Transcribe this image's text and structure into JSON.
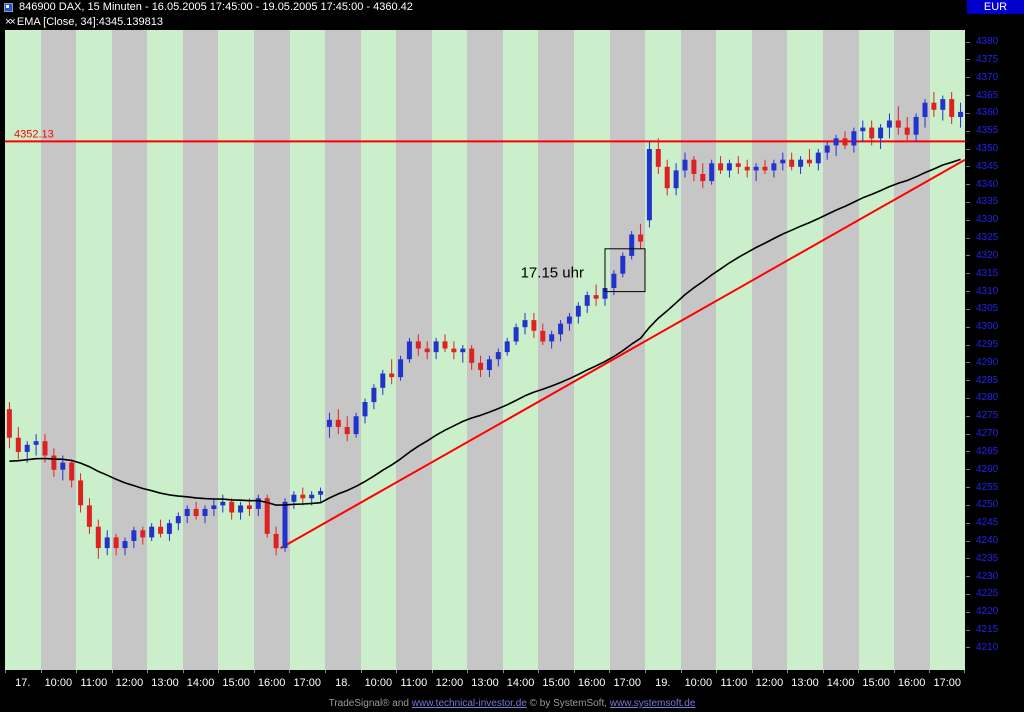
{
  "title_bar": {
    "title": "846900  DAX, 15 Minuten - 16.05.2005 17:45:00 - 19.05.2005 17:45:00 - 4360.42",
    "currency": "EUR"
  },
  "legend": {
    "marker": "××",
    "label": "EMA [Close, 34]:4345.139813"
  },
  "status_bar": {
    "prefix": "TradeSignal® and ",
    "link1": "www.technical-investor.de",
    "middle": " © by SystemSoft, ",
    "link2": "www.systemsoft.de"
  },
  "chart_data": {
    "type": "candlestick",
    "symbol": "846900",
    "name": "DAX",
    "interval": "15 Minuten",
    "date_range": "16.05.2005 17:45:00 - 19.05.2005 17:45:00",
    "last_price": 4360.42,
    "ylim": [
      4203.8,
      4383.4
    ],
    "y_ticks": [
      4380,
      4375,
      4370,
      4365,
      4360,
      4355,
      4350,
      4345,
      4340,
      4335,
      4330,
      4325,
      4320,
      4315,
      4310,
      4305,
      4300,
      4295,
      4290,
      4285,
      4280,
      4275,
      4270,
      4265,
      4260,
      4255,
      4250,
      4245,
      4240,
      4235,
      4230,
      4225,
      4220,
      4215,
      4210
    ],
    "x_labels": [
      "17.",
      "10:00",
      "11:00",
      "12:00",
      "13:00",
      "14:00",
      "15:00",
      "16:00",
      "17:00",
      "18.",
      "10:00",
      "11:00",
      "12:00",
      "13:00",
      "14:00",
      "15:00",
      "16:00",
      "17:00",
      "19.",
      "10:00",
      "11:00",
      "12:00",
      "13:00",
      "14:00",
      "15:00",
      "16:00",
      "17:00"
    ],
    "candles_per_label": 4,
    "price_line": {
      "value": 4352.13,
      "label": "4352.13",
      "color": "#ff0000"
    },
    "trend_line": {
      "from": {
        "index": 31,
        "price": 4238
      },
      "to": {
        "index": 108,
        "price": 4347
      },
      "color": "#ff0000"
    },
    "annotation": {
      "text": "17.15 uhr",
      "text_index": 58,
      "text_price": 4314,
      "box": {
        "from_index": 67.5,
        "to_index": 72,
        "top": 4322,
        "bottom": 4310
      }
    },
    "ema": {
      "period": 34,
      "seed": 4262,
      "color": "#000000",
      "last_value": 4345.139813
    },
    "colors": {
      "up": "#2233cc",
      "down": "#dd2222",
      "stripe_a": "#cbeecb",
      "stripe_b": "#c6c6c6",
      "axis_text": "#2222ee",
      "time_text": "#ffffff"
    },
    "candle_format": "open,high,low,close",
    "candles": [
      [
        4277,
        4279,
        4266,
        4269
      ],
      [
        4269,
        4272,
        4263,
        4265
      ],
      [
        4265,
        4268,
        4262,
        4267
      ],
      [
        4267,
        4270,
        4264,
        4268
      ],
      [
        4268,
        4270,
        4262,
        4264
      ],
      [
        4264,
        4266,
        4258,
        4260
      ],
      [
        4260,
        4264,
        4257,
        4262
      ],
      [
        4262,
        4263,
        4255,
        4257
      ],
      [
        4257,
        4259,
        4248,
        4250
      ],
      [
        4250,
        4252,
        4242,
        4244
      ],
      [
        4244,
        4246,
        4235,
        4238
      ],
      [
        4238,
        4243,
        4236,
        4241
      ],
      [
        4241,
        4242,
        4236,
        4238
      ],
      [
        4238,
        4241,
        4236,
        4240
      ],
      [
        4240,
        4244,
        4238,
        4243
      ],
      [
        4243,
        4244,
        4239,
        4241
      ],
      [
        4241,
        4245,
        4240,
        4244
      ],
      [
        4244,
        4246,
        4241,
        4242
      ],
      [
        4242,
        4246,
        4240,
        4245
      ],
      [
        4245,
        4248,
        4243,
        4247
      ],
      [
        4247,
        4250,
        4245,
        4249
      ],
      [
        4249,
        4251,
        4246,
        4247
      ],
      [
        4247,
        4250,
        4245,
        4249
      ],
      [
        4249,
        4252,
        4247,
        4250
      ],
      [
        4250,
        4253,
        4248,
        4251
      ],
      [
        4251,
        4252,
        4246,
        4248
      ],
      [
        4248,
        4251,
        4246,
        4250
      ],
      [
        4250,
        4252,
        4247,
        4249
      ],
      [
        4249,
        4253,
        4247,
        4252
      ],
      [
        4252,
        4253,
        4241,
        4242
      ],
      [
        4242,
        4244,
        4236,
        4238
      ],
      [
        4238,
        4252,
        4237,
        4251
      ],
      [
        4251,
        4254,
        4249,
        4253
      ],
      [
        4253,
        4255,
        4250,
        4252
      ],
      [
        4252,
        4254,
        4250,
        4253
      ],
      [
        4253,
        4255,
        4251,
        4254
      ],
      [
        4272,
        4276,
        4269,
        4274
      ],
      [
        4274,
        4277,
        4270,
        4272
      ],
      [
        4272,
        4275,
        4268,
        4270
      ],
      [
        4270,
        4276,
        4269,
        4275
      ],
      [
        4275,
        4280,
        4273,
        4279
      ],
      [
        4279,
        4284,
        4277,
        4283
      ],
      [
        4283,
        4288,
        4281,
        4287
      ],
      [
        4287,
        4291,
        4284,
        4286
      ],
      [
        4286,
        4292,
        4285,
        4291
      ],
      [
        4291,
        4297,
        4290,
        4296
      ],
      [
        4296,
        4298,
        4292,
        4294
      ],
      [
        4294,
        4296,
        4291,
        4293
      ],
      [
        4293,
        4297,
        4291,
        4296
      ],
      [
        4296,
        4298,
        4293,
        4294
      ],
      [
        4294,
        4296,
        4291,
        4293
      ],
      [
        4293,
        4295,
        4290,
        4294
      ],
      [
        4294,
        4295,
        4288,
        4290
      ],
      [
        4290,
        4292,
        4286,
        4288
      ],
      [
        4288,
        4292,
        4286,
        4291
      ],
      [
        4291,
        4294,
        4289,
        4293
      ],
      [
        4293,
        4297,
        4292,
        4296
      ],
      [
        4296,
        4301,
        4295,
        4300
      ],
      [
        4300,
        4304,
        4298,
        4302
      ],
      [
        4302,
        4304,
        4297,
        4299
      ],
      [
        4299,
        4301,
        4295,
        4296
      ],
      [
        4296,
        4299,
        4294,
        4298
      ],
      [
        4298,
        4302,
        4296,
        4301
      ],
      [
        4301,
        4304,
        4299,
        4303
      ],
      [
        4303,
        4307,
        4301,
        4306
      ],
      [
        4306,
        4310,
        4304,
        4309
      ],
      [
        4309,
        4312,
        4306,
        4308
      ],
      [
        4308,
        4312,
        4306,
        4311
      ],
      [
        4311,
        4316,
        4309,
        4315
      ],
      [
        4315,
        4321,
        4314,
        4320
      ],
      [
        4320,
        4327,
        4319,
        4326
      ],
      [
        4326,
        4329,
        4322,
        4324
      ],
      [
        4330,
        4352,
        4328,
        4350
      ],
      [
        4350,
        4353,
        4343,
        4345
      ],
      [
        4345,
        4347,
        4337,
        4339
      ],
      [
        4339,
        4346,
        4337,
        4344
      ],
      [
        4344,
        4349,
        4342,
        4347
      ],
      [
        4347,
        4348,
        4341,
        4343
      ],
      [
        4343,
        4346,
        4339,
        4341
      ],
      [
        4341,
        4347,
        4340,
        4346
      ],
      [
        4346,
        4348,
        4343,
        4344
      ],
      [
        4344,
        4347,
        4342,
        4346
      ],
      [
        4346,
        4348,
        4343,
        4345
      ],
      [
        4345,
        4347,
        4342,
        4344
      ],
      [
        4344,
        4346,
        4341,
        4345
      ],
      [
        4345,
        4347,
        4343,
        4344
      ],
      [
        4344,
        4347,
        4342,
        4346
      ],
      [
        4346,
        4349,
        4344,
        4347
      ],
      [
        4347,
        4349,
        4344,
        4345
      ],
      [
        4345,
        4348,
        4343,
        4347
      ],
      [
        4347,
        4350,
        4345,
        4346
      ],
      [
        4346,
        4350,
        4344,
        4349
      ],
      [
        4349,
        4352,
        4347,
        4351
      ],
      [
        4351,
        4354,
        4348,
        4353
      ],
      [
        4353,
        4355,
        4350,
        4351
      ],
      [
        4351,
        4356,
        4349,
        4355
      ],
      [
        4355,
        4358,
        4352,
        4356
      ],
      [
        4356,
        4358,
        4351,
        4353
      ],
      [
        4353,
        4357,
        4350,
        4356
      ],
      [
        4356,
        4360,
        4353,
        4358
      ],
      [
        4358,
        4362,
        4354,
        4356
      ],
      [
        4356,
        4359,
        4352,
        4354
      ],
      [
        4354,
        4360,
        4352,
        4359
      ],
      [
        4359,
        4364,
        4356,
        4363
      ],
      [
        4363,
        4366,
        4359,
        4361
      ],
      [
        4361,
        4365,
        4358,
        4364
      ],
      [
        4364,
        4366,
        4357,
        4359
      ],
      [
        4359,
        4363,
        4356,
        4360.42
      ]
    ]
  }
}
